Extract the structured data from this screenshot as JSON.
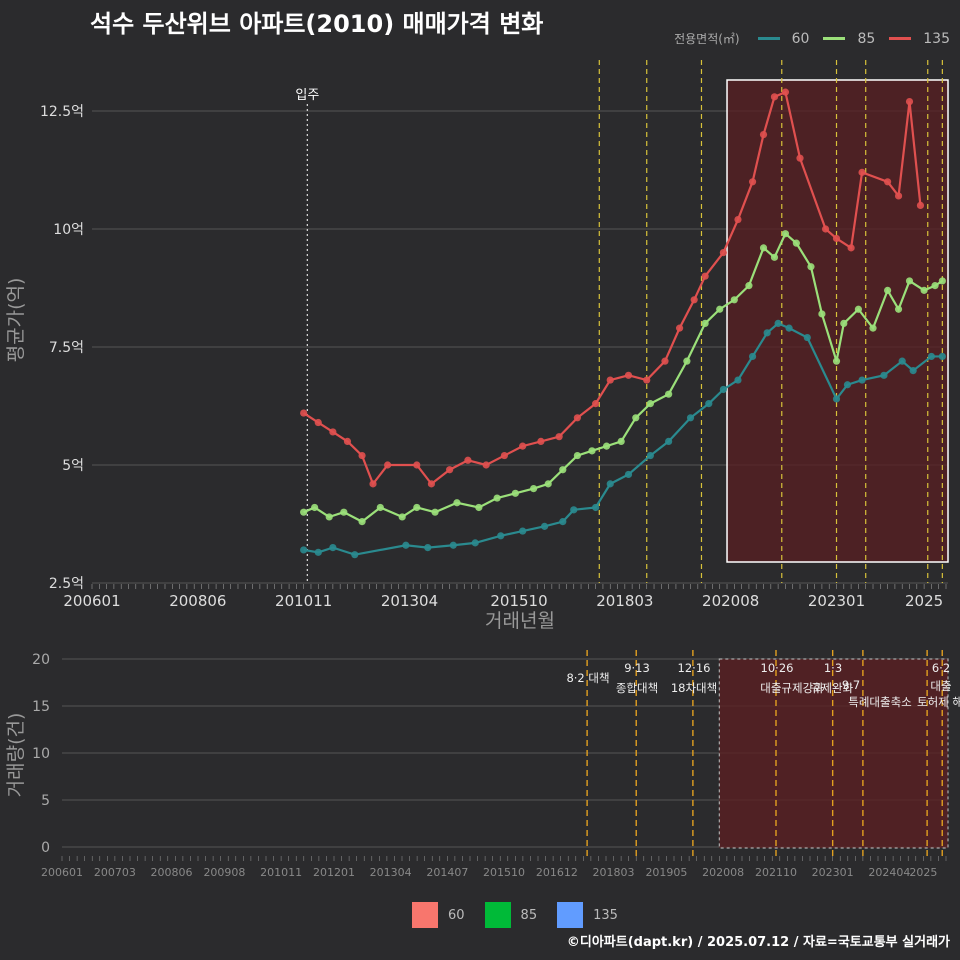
{
  "title": "석수 두산위브 아파트(2010) 매매가격 변화",
  "credit": "©디아파트(dapt.kr) / 2025.07.12 / 자료=국토교통부 실거래가",
  "legend_top": {
    "title": "전용면적(㎡)",
    "items": [
      {
        "label": "60",
        "color": "#2a8a8f"
      },
      {
        "label": "85",
        "color": "#9be07a"
      },
      {
        "label": "135",
        "color": "#e0504f"
      }
    ]
  },
  "legend_bottom": {
    "items": [
      {
        "label": "60",
        "color": "#f8766d"
      },
      {
        "label": "85",
        "color": "#00ba38"
      },
      {
        "label": "135",
        "color": "#619cff"
      }
    ]
  },
  "chart_data": [
    {
      "type": "line",
      "ylabel": "평균가(억)",
      "xlabel": "거래년월",
      "x_tick_labels": [
        "200601",
        "200806",
        "201011",
        "201304",
        "201510",
        "201803",
        "202008",
        "202301",
        "2025"
      ],
      "y_tick_labels": [
        "2.5억",
        "5억",
        "7.5억",
        "10억",
        "12.5억"
      ],
      "ylim": [
        2.5,
        13.2
      ],
      "annotation": {
        "label": "입주",
        "x": "2010-12"
      },
      "highlight_period": [
        "2020-07",
        "2025-07"
      ],
      "policy_lines": [
        "2017-08",
        "2018-09",
        "2019-12",
        "2021-10",
        "2023-01",
        "2023-09",
        "2025-02",
        "2025-06"
      ],
      "series": [
        {
          "name": "60",
          "color": "#2a8a8f",
          "points": [
            [
              "2010-11",
              3.2
            ],
            [
              "2011-03",
              3.15
            ],
            [
              "2011-07",
              3.25
            ],
            [
              "2012-01",
              3.1
            ],
            [
              "2013-03",
              3.3
            ],
            [
              "2013-09",
              3.25
            ],
            [
              "2014-04",
              3.3
            ],
            [
              "2014-10",
              3.35
            ],
            [
              "2015-05",
              3.5
            ],
            [
              "2015-11",
              3.6
            ],
            [
              "2016-05",
              3.7
            ],
            [
              "2016-10",
              3.8
            ],
            [
              "2017-01",
              4.05
            ],
            [
              "2017-07",
              4.1
            ],
            [
              "2017-11",
              4.6
            ],
            [
              "2018-04",
              4.8
            ],
            [
              "2018-10",
              5.2
            ],
            [
              "2019-03",
              5.5
            ],
            [
              "2019-09",
              6.0
            ],
            [
              "2020-02",
              6.3
            ],
            [
              "2020-06",
              6.6
            ],
            [
              "2020-10",
              6.8
            ],
            [
              "2021-02",
              7.3
            ],
            [
              "2021-06",
              7.8
            ],
            [
              "2021-09",
              8.0
            ],
            [
              "2021-12",
              7.9
            ],
            [
              "2022-05",
              7.7
            ],
            [
              "2023-01",
              6.4
            ],
            [
              "2023-04",
              6.7
            ],
            [
              "2023-08",
              6.8
            ],
            [
              "2024-02",
              6.9
            ],
            [
              "2024-07",
              7.2
            ],
            [
              "2024-10",
              7.0
            ],
            [
              "2025-03",
              7.3
            ],
            [
              "2025-06",
              7.3
            ]
          ]
        },
        {
          "name": "85",
          "color": "#9be07a",
          "points": [
            [
              "2010-11",
              4.0
            ],
            [
              "2011-02",
              4.1
            ],
            [
              "2011-06",
              3.9
            ],
            [
              "2011-10",
              4.0
            ],
            [
              "2012-03",
              3.8
            ],
            [
              "2012-08",
              4.1
            ],
            [
              "2013-02",
              3.9
            ],
            [
              "2013-06",
              4.1
            ],
            [
              "2013-11",
              4.0
            ],
            [
              "2014-05",
              4.2
            ],
            [
              "2014-11",
              4.1
            ],
            [
              "2015-04",
              4.3
            ],
            [
              "2015-09",
              4.4
            ],
            [
              "2016-02",
              4.5
            ],
            [
              "2016-06",
              4.6
            ],
            [
              "2016-10",
              4.9
            ],
            [
              "2017-02",
              5.2
            ],
            [
              "2017-06",
              5.3
            ],
            [
              "2017-10",
              5.4
            ],
            [
              "2018-02",
              5.5
            ],
            [
              "2018-06",
              6.0
            ],
            [
              "2018-10",
              6.3
            ],
            [
              "2019-03",
              6.5
            ],
            [
              "2019-08",
              7.2
            ],
            [
              "2020-01",
              8.0
            ],
            [
              "2020-05",
              8.3
            ],
            [
              "2020-09",
              8.5
            ],
            [
              "2021-01",
              8.8
            ],
            [
              "2021-05",
              9.6
            ],
            [
              "2021-08",
              9.4
            ],
            [
              "2021-11",
              9.9
            ],
            [
              "2022-02",
              9.7
            ],
            [
              "2022-06",
              9.2
            ],
            [
              "2022-09",
              8.2
            ],
            [
              "2023-01",
              7.2
            ],
            [
              "2023-03",
              8.0
            ],
            [
              "2023-07",
              8.3
            ],
            [
              "2023-11",
              7.9
            ],
            [
              "2024-03",
              8.7
            ],
            [
              "2024-06",
              8.3
            ],
            [
              "2024-09",
              8.9
            ],
            [
              "2025-01",
              8.7
            ],
            [
              "2025-04",
              8.8
            ],
            [
              "2025-06",
              8.9
            ]
          ]
        },
        {
          "name": "135",
          "color": "#e0504f",
          "points": [
            [
              "2010-11",
              6.1
            ],
            [
              "2011-03",
              5.9
            ],
            [
              "2011-07",
              5.7
            ],
            [
              "2011-11",
              5.5
            ],
            [
              "2012-03",
              5.2
            ],
            [
              "2012-06",
              4.6
            ],
            [
              "2012-10",
              5.0
            ],
            [
              "2013-06",
              5.0
            ],
            [
              "2013-10",
              4.6
            ],
            [
              "2014-03",
              4.9
            ],
            [
              "2014-08",
              5.1
            ],
            [
              "2015-01",
              5.0
            ],
            [
              "2015-06",
              5.2
            ],
            [
              "2015-11",
              5.4
            ],
            [
              "2016-04",
              5.5
            ],
            [
              "2016-09",
              5.6
            ],
            [
              "2017-02",
              6.0
            ],
            [
              "2017-07",
              6.3
            ],
            [
              "2017-11",
              6.8
            ],
            [
              "2018-04",
              6.9
            ],
            [
              "2018-09",
              6.8
            ],
            [
              "2019-02",
              7.2
            ],
            [
              "2019-06",
              7.9
            ],
            [
              "2019-10",
              8.5
            ],
            [
              "2020-01",
              9.0
            ],
            [
              "2020-06",
              9.5
            ],
            [
              "2020-10",
              10.2
            ],
            [
              "2021-02",
              11.0
            ],
            [
              "2021-05",
              12.0
            ],
            [
              "2021-08",
              12.8
            ],
            [
              "2021-11",
              12.9
            ],
            [
              "2022-03",
              11.5
            ],
            [
              "2022-10",
              10.0
            ],
            [
              "2023-01",
              9.8
            ],
            [
              "2023-05",
              9.6
            ],
            [
              "2023-08",
              11.2
            ],
            [
              "2024-03",
              11.0
            ],
            [
              "2024-06",
              10.7
            ],
            [
              "2024-09",
              12.7
            ],
            [
              "2024-12",
              10.5
            ]
          ]
        }
      ]
    },
    {
      "type": "bar",
      "ylabel": "거래량(건)",
      "x_tick_labels": [
        "200601",
        "200703",
        "200806",
        "200908",
        "201011",
        "201201",
        "201304",
        "201407",
        "201510",
        "201612",
        "201803",
        "201905",
        "202008",
        "202110",
        "202301",
        "202404",
        "2025"
      ],
      "y_tick_labels": [
        "0",
        "5",
        "10",
        "15",
        "20"
      ],
      "ylim": [
        0,
        20
      ],
      "policies": [
        {
          "date": "2017-08",
          "l1": "",
          "l2": "8·2 대책"
        },
        {
          "date": "2018-09",
          "l1": "9·13",
          "l2": "종합대책"
        },
        {
          "date": "2019-12",
          "l1": "12·16",
          "l2": "18차대책"
        },
        {
          "date": "2021-10",
          "l1": "10·26",
          "l2": "대출규제강화"
        },
        {
          "date": "2023-01",
          "l1": "1·3",
          "l2": "규제완화"
        },
        {
          "date": "2023-09",
          "l1": "9·7",
          "l2": "특례대출축소"
        },
        {
          "date": "2025-02",
          "l1": "",
          "l2": "토허제 해"
        },
        {
          "date": "2025-06",
          "l1": "6·2",
          "l2": "대출"
        }
      ]
    }
  ]
}
